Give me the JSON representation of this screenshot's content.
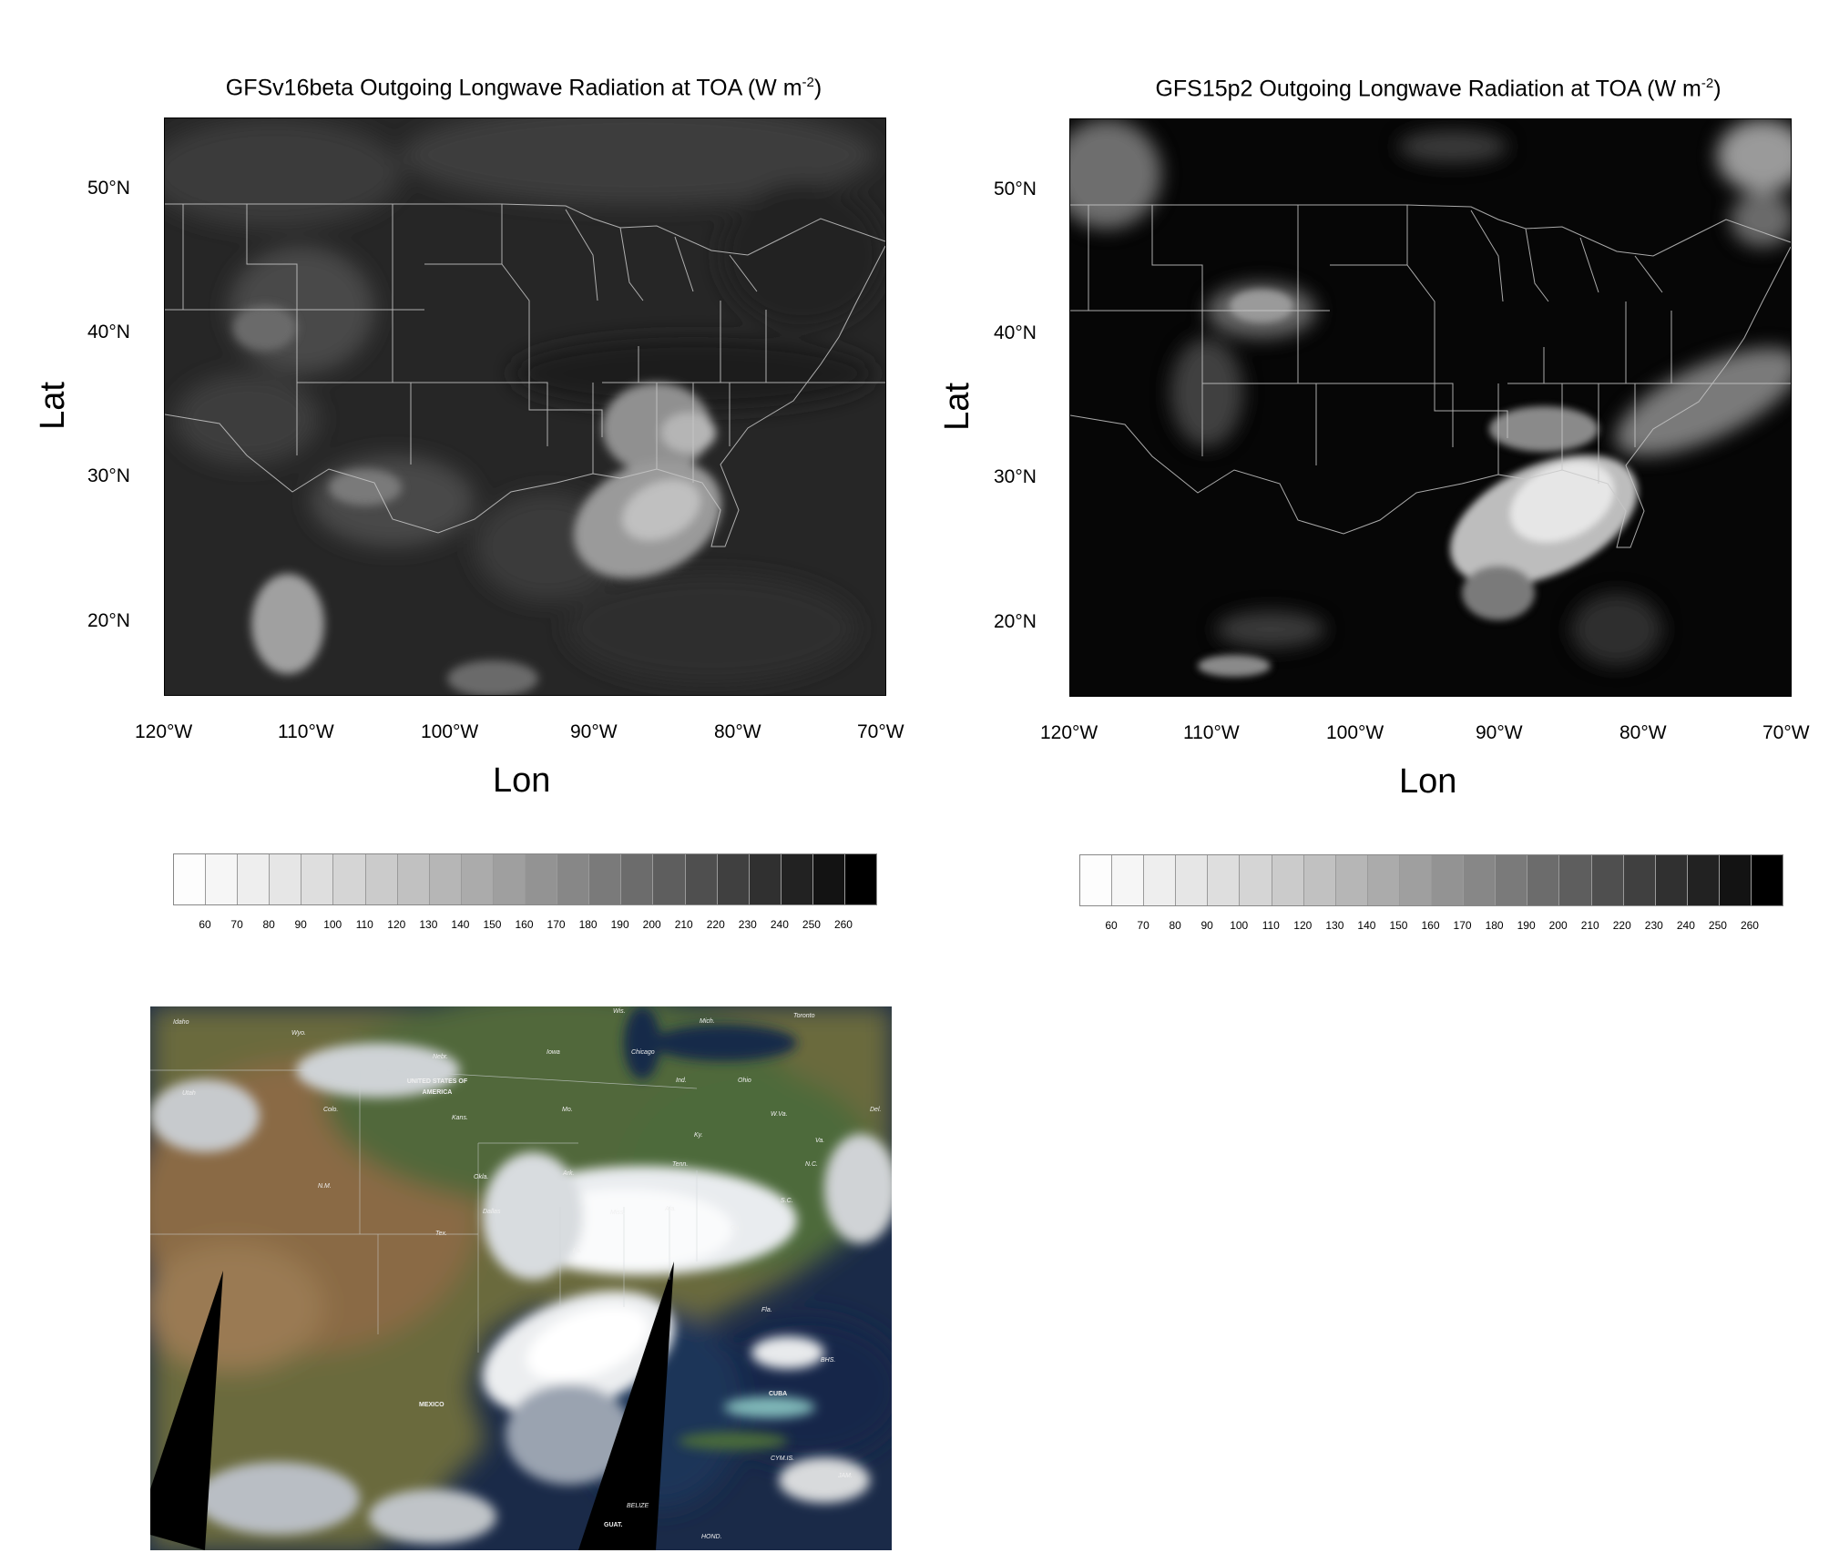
{
  "left_panel": {
    "title": "GFSv16beta Outgoing Longwave Radiation at TOA (W m",
    "title_sup": "-2",
    "title_close": ")",
    "ylabel": "Lat",
    "xlabel": "Lon",
    "lat_ticks": [
      "50°N",
      "40°N",
      "30°N",
      "20°N"
    ],
    "lon_ticks": [
      "120°W",
      "110°W",
      "100°W",
      "90°W",
      "80°W",
      "70°W"
    ]
  },
  "right_panel": {
    "title": "GFS15p2 Outgoing Longwave Radiation at TOA (W m",
    "title_sup": "-2",
    "title_close": ")",
    "ylabel": "Lat",
    "xlabel": "Lon",
    "lat_ticks": [
      "50°N",
      "40°N",
      "30°N",
      "20°N"
    ],
    "lon_ticks": [
      "120°W",
      "110°W",
      "100°W",
      "90°W",
      "80°W",
      "70°W"
    ]
  },
  "colorbar": {
    "labels": [
      "60",
      "70",
      "80",
      "90",
      "100",
      "110",
      "120",
      "130",
      "140",
      "150",
      "160",
      "170",
      "180",
      "190",
      "200",
      "210",
      "220",
      "230",
      "240",
      "250",
      "260"
    ],
    "colors": [
      "#fdfdfd",
      "#f6f6f6",
      "#eeeeee",
      "#e6e6e6",
      "#dedede",
      "#d5d5d5",
      "#cbcbcb",
      "#c1c1c1",
      "#b6b6b6",
      "#ababab",
      "#9f9f9f",
      "#939393",
      "#878787",
      "#7a7a7a",
      "#6c6c6c",
      "#5e5e5e",
      "#4f4f4f",
      "#404040",
      "#303030",
      "#222222",
      "#131313",
      "#000000"
    ]
  },
  "satellite": {
    "labels": [
      {
        "text": "Idaho",
        "bold": false
      },
      {
        "text": "Wyo.",
        "bold": false
      },
      {
        "text": "Nebr.",
        "bold": false
      },
      {
        "text": "Iowa",
        "bold": false
      },
      {
        "text": "Wis.",
        "bold": false
      },
      {
        "text": "Mich.",
        "bold": false
      },
      {
        "text": "Toronto",
        "bold": false
      },
      {
        "text": "Chicago",
        "bold": false
      },
      {
        "text": "UNITED STATES OF AMERICA",
        "bold": true
      },
      {
        "text": "Utah",
        "bold": false
      },
      {
        "text": "Colo.",
        "bold": false
      },
      {
        "text": "Kans.",
        "bold": false
      },
      {
        "text": "Mo.",
        "bold": false
      },
      {
        "text": "Ind.",
        "bold": false
      },
      {
        "text": "Ohio",
        "bold": false
      },
      {
        "text": "W.Va.",
        "bold": false
      },
      {
        "text": "Va.",
        "bold": false
      },
      {
        "text": "Del.",
        "bold": false
      },
      {
        "text": "Ky.",
        "bold": false
      },
      {
        "text": "N.M.",
        "bold": false
      },
      {
        "text": "Okla.",
        "bold": false
      },
      {
        "text": "Ark.",
        "bold": false
      },
      {
        "text": "Tenn.",
        "bold": false
      },
      {
        "text": "N.C.",
        "bold": false
      },
      {
        "text": "Dallas",
        "bold": false
      },
      {
        "text": "Miss.",
        "bold": false
      },
      {
        "text": "Ala.",
        "bold": false
      },
      {
        "text": "S.C.",
        "bold": false
      },
      {
        "text": "Tex.",
        "bold": false
      },
      {
        "text": "La.",
        "bold": false
      },
      {
        "text": "Ga.",
        "bold": false
      },
      {
        "text": "Fla.",
        "bold": false
      },
      {
        "text": "MEXICO",
        "bold": true
      },
      {
        "text": "BHS.",
        "bold": false
      },
      {
        "text": "CUBA",
        "bold": true
      },
      {
        "text": "CYM.IS.",
        "bold": false
      },
      {
        "text": "JAM.",
        "bold": false
      },
      {
        "text": "BELIZE",
        "bold": false
      },
      {
        "text": "GUAT.",
        "bold": true
      },
      {
        "text": "HOND.",
        "bold": false
      }
    ]
  }
}
